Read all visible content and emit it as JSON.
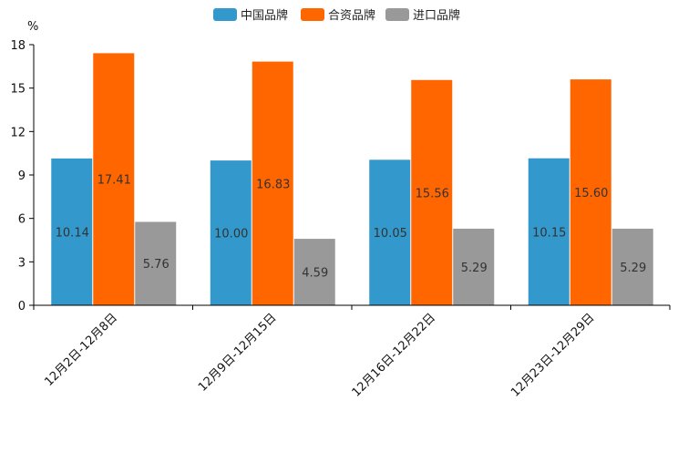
{
  "chart_data": {
    "type": "bar",
    "unit_label": "%",
    "categories": [
      "12月2日-12月8日",
      "12月9日-12月15日",
      "12月16日-12月22日",
      "12月23日-12月29日"
    ],
    "series": [
      {
        "name": "中国品牌",
        "color": "#3399cc",
        "values": [
          10.14,
          10.0,
          10.05,
          10.15
        ],
        "labels": [
          "10.14",
          "10.00",
          "10.05",
          "10.15"
        ]
      },
      {
        "name": "合资品牌",
        "color": "#ff6600",
        "values": [
          17.41,
          16.83,
          15.56,
          15.6
        ],
        "labels": [
          "17.41",
          "16.83",
          "15.56",
          "15.60"
        ]
      },
      {
        "name": "进口品牌",
        "color": "#999999",
        "values": [
          5.76,
          4.59,
          5.29,
          5.29
        ],
        "labels": [
          "5.76",
          "4.59",
          "5.29",
          "5.29"
        ]
      }
    ],
    "yticks": [
      "0",
      "3",
      "6",
      "9",
      "12",
      "15",
      "18"
    ],
    "ylim": [
      0,
      18
    ],
    "legend_position": "top-center"
  }
}
